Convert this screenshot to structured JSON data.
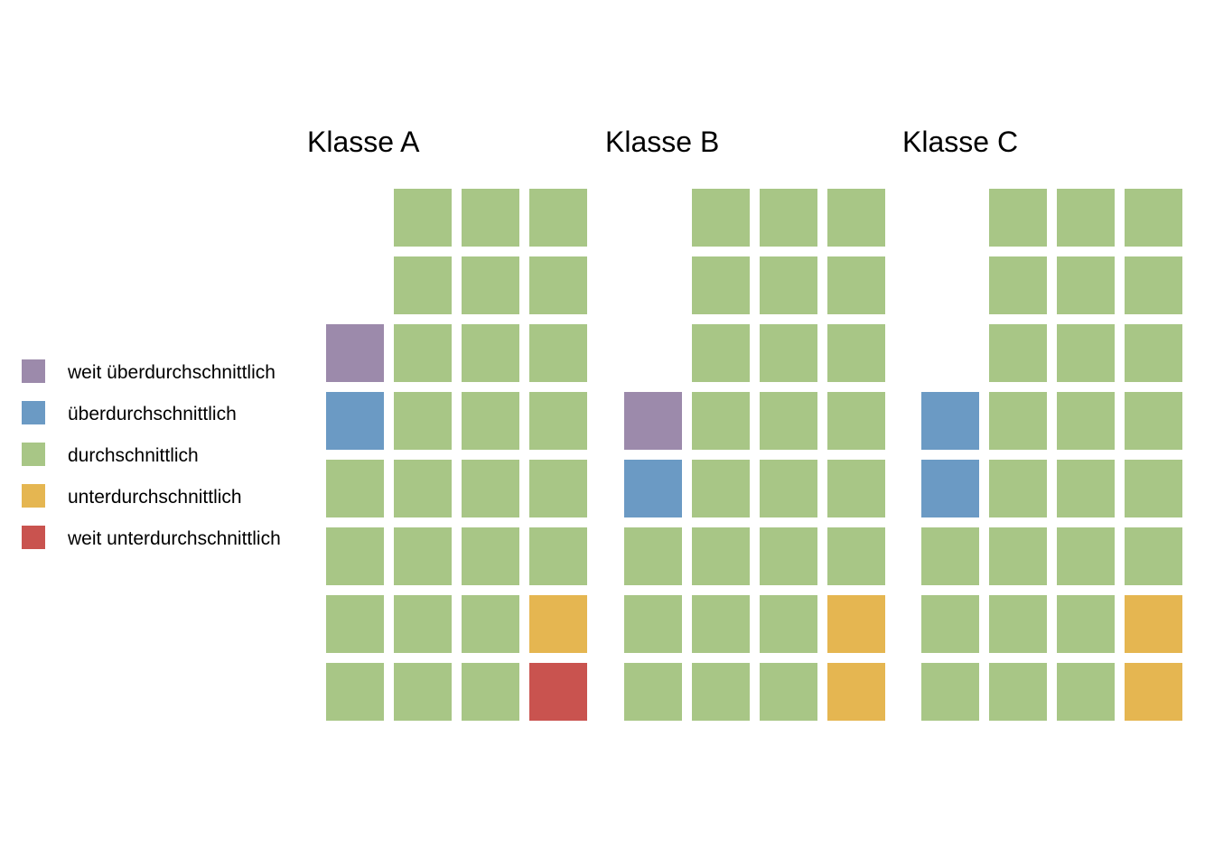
{
  "chart_data": {
    "type": "waffle",
    "categories": [
      "weit überdurchschnittlich",
      "überdurchschnittlich",
      "durchschnittlich",
      "unterdurchschnittlich",
      "weit unterdurchschnittlich"
    ],
    "colors": {
      "weit überdurchschnittlich": "#9c8aab",
      "überdurchschnittlich": "#6b9ac4",
      "durchschnittlich": "#a8c686",
      "unterdurchschnittlich": "#e5b651",
      "weit unterdurchschnittlich": "#c9534f"
    },
    "legend_position": "left",
    "grid": false,
    "panels": [
      {
        "title": "Klasse A",
        "counts": [
          1,
          1,
          26,
          1,
          1
        ]
      },
      {
        "title": "Klasse B",
        "counts": [
          1,
          1,
          25,
          2,
          0
        ]
      },
      {
        "title": "Klasse C",
        "counts": [
          0,
          2,
          25,
          2,
          0
        ]
      }
    ]
  }
}
